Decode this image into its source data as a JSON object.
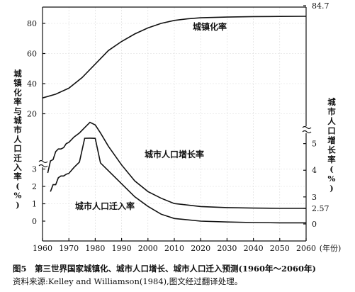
{
  "chart_data": {
    "type": "line",
    "caption": "图5　第三世界国家城镇化、城市人口增长、城市人口迁入预测(1960年～2060年)",
    "source": "资料来源:Kelley and Williamson(1984),图文经过翻译处理。",
    "xlabel": "(年份)",
    "ylabel_left": "城镇化率与城市人口迁入率(%)",
    "ylabel_right": "城市人口增长率(%)",
    "x_ticks": [
      1960,
      1970,
      1980,
      1990,
      2000,
      2010,
      2020,
      2030,
      2040,
      2050,
      2060
    ],
    "x_tick_labels": [
      "1960",
      "1970",
      "1980",
      "1990",
      "2000",
      "2010",
      "2020",
      "2030",
      "2040",
      "2050",
      "2060"
    ],
    "xlim": [
      1960,
      2060
    ],
    "ylim_left": [
      -1,
      84
    ],
    "y_left_ticks": [
      0,
      1,
      2,
      3,
      20,
      40,
      60,
      80
    ],
    "y_left_tick_labels": [
      "0",
      "1",
      "2",
      "3",
      "20",
      "40",
      "60",
      "80"
    ],
    "y_right_ticks": [
      0,
      2.57,
      3,
      4,
      5,
      84.7
    ],
    "y_right_tick_labels": [
      "0",
      "2.57",
      "3",
      "4",
      "5",
      "84.7"
    ],
    "axis_breaks": "both y axes broken (≈ marks)",
    "grid": false,
    "series": [
      {
        "name": "城镇化率",
        "axis": "left",
        "x": [
          1960,
          1965,
          1970,
          1975,
          1980,
          1985,
          1990,
          1995,
          2000,
          2005,
          2010,
          2015,
          2020,
          2030,
          2040,
          2050,
          2060
        ],
        "values": [
          30.5,
          33,
          37,
          44,
          53,
          62,
          68,
          73,
          77,
          80,
          82,
          83,
          83.7,
          84.2,
          84.5,
          84.6,
          84.7
        ]
      },
      {
        "name": "城市人口增长率",
        "axis": "right",
        "x": [
          1962,
          1963,
          1964,
          1965,
          1966,
          1967,
          1968,
          1969,
          1970,
          1972,
          1974,
          1976,
          1978,
          1980,
          1982,
          1985,
          1990,
          1995,
          2000,
          2005,
          2010,
          2020,
          2030,
          2040,
          2050,
          2060
        ],
        "values": [
          3.9,
          4.35,
          4.4,
          4.7,
          4.8,
          4.8,
          4.85,
          5.0,
          5.05,
          5.25,
          5.4,
          5.6,
          5.8,
          5.7,
          5.4,
          4.9,
          4.2,
          3.6,
          3.2,
          2.95,
          2.75,
          2.64,
          2.6,
          2.58,
          2.57,
          2.57
        ]
      },
      {
        "name": "城市人口迁入率",
        "axis": "left",
        "x": [
          1963,
          1964,
          1965,
          1966,
          1967,
          1968,
          1969,
          1970,
          1972,
          1974,
          1976,
          1978,
          1980,
          1982,
          1985,
          1990,
          1995,
          2000,
          2005,
          2010,
          2020,
          2030,
          2040,
          2050,
          2060
        ],
        "values": [
          1.7,
          2.1,
          2.1,
          2.5,
          2.6,
          2.6,
          2.7,
          2.75,
          3.1,
          3.4,
          3.7,
          3.8,
          3.65,
          3.35,
          2.9,
          2.15,
          1.4,
          0.85,
          0.4,
          0.15,
          0.0,
          -0.05,
          -0.08,
          -0.1,
          -0.1
        ]
      }
    ],
    "annotations": [
      "城镇化率",
      "城市人口增长率",
      "城市人口迁入率"
    ]
  }
}
